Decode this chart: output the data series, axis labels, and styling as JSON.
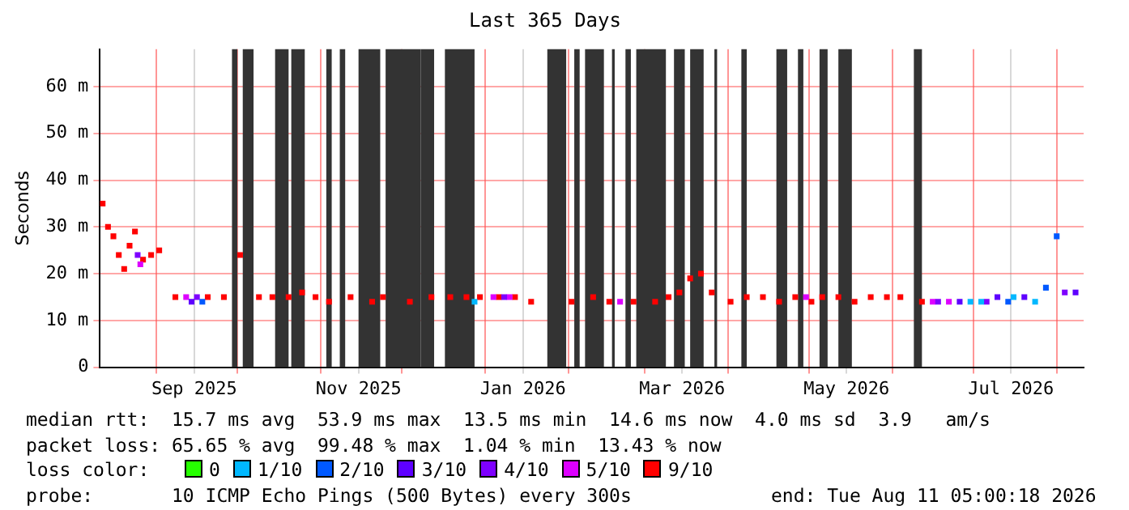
{
  "chart_data": {
    "type": "scatter",
    "title": "Last 365 Days",
    "ylabel": "Seconds",
    "legend_title": "loss color:",
    "legend": "bottom",
    "marker": "square",
    "grid": true,
    "xlim": [
      "2025-08-11",
      "2026-08-11"
    ],
    "xticks": [
      {
        "value": "2025-09-01",
        "label": null
      },
      {
        "value": "2025-09-15",
        "label": "Sep 2025"
      },
      {
        "value": "2025-10-01",
        "label": null
      },
      {
        "value": "2025-11-01",
        "label": null
      },
      {
        "value": "2025-11-15",
        "label": "Nov 2025"
      },
      {
        "value": "2025-12-01",
        "label": null
      },
      {
        "value": "2026-01-01",
        "label": null
      },
      {
        "value": "2026-01-15",
        "label": "Jan 2026"
      },
      {
        "value": "2026-02-01",
        "label": null
      },
      {
        "value": "2026-03-01",
        "label": null
      },
      {
        "value": "2026-03-15",
        "label": "Mar 2026"
      },
      {
        "value": "2026-04-01",
        "label": null
      },
      {
        "value": "2026-05-01",
        "label": null
      },
      {
        "value": "2026-05-15",
        "label": "May 2026"
      },
      {
        "value": "2026-06-01",
        "label": null
      },
      {
        "value": "2026-07-01",
        "label": null
      },
      {
        "value": "2026-07-15",
        "label": "Jul 2026"
      },
      {
        "value": "2026-08-01",
        "label": null
      }
    ],
    "ylim": [
      0,
      68
    ],
    "yticks": [
      0,
      {
        "value": 10,
        "label": "10 m"
      },
      {
        "value": 20,
        "label": "20 m"
      },
      {
        "value": 30,
        "label": "30 m"
      },
      {
        "value": 40,
        "label": "40 m"
      },
      {
        "value": 50,
        "label": "50 m"
      },
      {
        "value": 60,
        "label": "60 m"
      }
    ],
    "bands": [
      {
        "axis": "x",
        "from": "2025-09-29",
        "to": "2025-10-01",
        "color": "#333333"
      },
      {
        "axis": "x",
        "from": "2025-10-03",
        "to": "2025-10-07",
        "color": "#333333"
      },
      {
        "axis": "x",
        "from": "2025-10-15",
        "to": "2025-10-20",
        "color": "#333333"
      },
      {
        "axis": "x",
        "from": "2025-10-21",
        "to": "2025-10-26",
        "color": "#333333"
      },
      {
        "axis": "x",
        "from": "2025-11-03",
        "to": "2025-11-05",
        "color": "#333333"
      },
      {
        "axis": "x",
        "from": "2025-11-08",
        "to": "2025-11-10",
        "color": "#333333"
      },
      {
        "axis": "x",
        "from": "2025-11-15",
        "to": "2025-11-23",
        "color": "#333333"
      },
      {
        "axis": "x",
        "from": "2025-11-25",
        "to": "2025-12-08",
        "color": "#333333"
      },
      {
        "axis": "x",
        "from": "2025-12-08",
        "to": "2025-12-13",
        "color": "#333333"
      },
      {
        "axis": "x",
        "from": "2025-12-17",
        "to": "2025-12-28",
        "color": "#333333"
      },
      {
        "axis": "x",
        "from": "2026-01-24",
        "to": "2026-01-31",
        "color": "#333333"
      },
      {
        "axis": "x",
        "from": "2026-02-03",
        "to": "2026-02-05",
        "color": "#333333"
      },
      {
        "axis": "x",
        "from": "2026-02-07",
        "to": "2026-02-14",
        "color": "#333333"
      },
      {
        "axis": "x",
        "from": "2026-02-17",
        "to": "2026-02-18",
        "color": "#333333"
      },
      {
        "axis": "x",
        "from": "2026-02-22",
        "to": "2026-02-24",
        "color": "#333333"
      },
      {
        "axis": "x",
        "from": "2026-02-26",
        "to": "2026-03-09",
        "color": "#333333"
      },
      {
        "axis": "x",
        "from": "2026-03-12",
        "to": "2026-03-16",
        "color": "#333333"
      },
      {
        "axis": "x",
        "from": "2026-03-18",
        "to": "2026-03-23",
        "color": "#333333"
      },
      {
        "axis": "x",
        "from": "2026-03-27",
        "to": "2026-03-28",
        "color": "#333333"
      },
      {
        "axis": "x",
        "from": "2026-04-06",
        "to": "2026-04-08",
        "color": "#333333"
      },
      {
        "axis": "x",
        "from": "2026-04-19",
        "to": "2026-04-23",
        "color": "#333333"
      },
      {
        "axis": "x",
        "from": "2026-04-27",
        "to": "2026-04-29",
        "color": "#333333"
      },
      {
        "axis": "x",
        "from": "2026-05-05",
        "to": "2026-05-08",
        "color": "#333333"
      },
      {
        "axis": "x",
        "from": "2026-05-12",
        "to": "2026-05-17",
        "color": "#333333"
      },
      {
        "axis": "x",
        "from": "2026-06-09",
        "to": "2026-06-12",
        "color": "#333333"
      }
    ],
    "series": [
      {
        "name": "0",
        "color": "#26ff00"
      },
      {
        "name": "1/10",
        "color": "#00b8ff",
        "x": [
          "2025-12-28",
          "2026-06-30",
          "2026-07-04",
          "2026-07-16",
          "2026-07-24"
        ],
        "values": [
          14,
          14,
          14,
          15,
          14
        ]
      },
      {
        "name": "2/10",
        "color": "#0059ff",
        "x": [
          "2025-09-18",
          "2026-07-14",
          "2026-07-28",
          "2026-08-01"
        ],
        "values": [
          14,
          14,
          17,
          28
        ]
      },
      {
        "name": "3/10",
        "color": "#5e00ff",
        "x": [
          "2025-09-14",
          "2026-06-26",
          "2026-07-10",
          "2026-07-20",
          "2026-08-08"
        ],
        "values": [
          14,
          14,
          15,
          15,
          16
        ]
      },
      {
        "name": "4/10",
        "color": "#7e00ff",
        "x": [
          "2025-08-25",
          "2025-09-16",
          "2026-01-08",
          "2026-06-18",
          "2026-07-06",
          "2026-08-04"
        ],
        "values": [
          24,
          15,
          15,
          14,
          14,
          16
        ]
      },
      {
        "name": "5/10",
        "color": "#dd00ff",
        "x": [
          "2025-08-26",
          "2025-09-12",
          "2026-01-04",
          "2026-01-10",
          "2026-02-20",
          "2026-04-30",
          "2026-06-16",
          "2026-06-22"
        ],
        "values": [
          22,
          15,
          15,
          15,
          14,
          15,
          14,
          14
        ]
      },
      {
        "name": "9/10",
        "color": "#ff0000",
        "x": [
          "2025-08-12",
          "2025-08-14",
          "2025-08-16",
          "2025-08-18",
          "2025-08-20",
          "2025-08-22",
          "2025-08-24",
          "2025-08-27",
          "2025-08-30",
          "2025-09-02",
          "2025-09-08",
          "2025-09-20",
          "2025-09-26",
          "2025-10-02",
          "2025-10-09",
          "2025-10-14",
          "2025-10-20",
          "2025-10-25",
          "2025-10-30",
          "2025-11-04",
          "2025-11-12",
          "2025-11-20",
          "2025-11-24",
          "2025-12-04",
          "2025-12-12",
          "2025-12-19",
          "2025-12-25",
          "2025-12-30",
          "2026-01-06",
          "2026-01-12",
          "2026-01-18",
          "2026-02-02",
          "2026-02-10",
          "2026-02-16",
          "2026-02-25",
          "2026-03-05",
          "2026-03-10",
          "2026-03-14",
          "2026-03-18",
          "2026-03-22",
          "2026-03-26",
          "2026-04-02",
          "2026-04-08",
          "2026-04-14",
          "2026-04-20",
          "2026-04-26",
          "2026-05-02",
          "2026-05-06",
          "2026-05-12",
          "2026-05-18",
          "2026-05-24",
          "2026-05-30",
          "2026-06-04",
          "2026-06-12"
        ],
        "values": [
          35,
          30,
          28,
          24,
          21,
          26,
          29,
          23,
          24,
          25,
          15,
          15,
          15,
          24,
          15,
          15,
          15,
          16,
          15,
          14,
          15,
          14,
          15,
          14,
          15,
          15,
          15,
          15,
          15,
          15,
          14,
          14,
          15,
          14,
          14,
          14,
          15,
          16,
          19,
          20,
          16,
          14,
          15,
          15,
          14,
          15,
          14,
          15,
          15,
          14,
          15,
          15,
          15,
          14
        ]
      }
    ],
    "annotations": [
      "median rtt:  15.7 ms avg  53.9 ms max  13.5 ms min  14.6 ms now  4.0 ms sd  3.9   am/s",
      "packet loss: 65.65 % avg  99.48 % max  1.04 % min  13.43 % now",
      "probe:       10 ICMP Echo Pings (500 Bytes) every 300s",
      "end: Tue Aug 11 05:00:18 2026"
    ]
  }
}
